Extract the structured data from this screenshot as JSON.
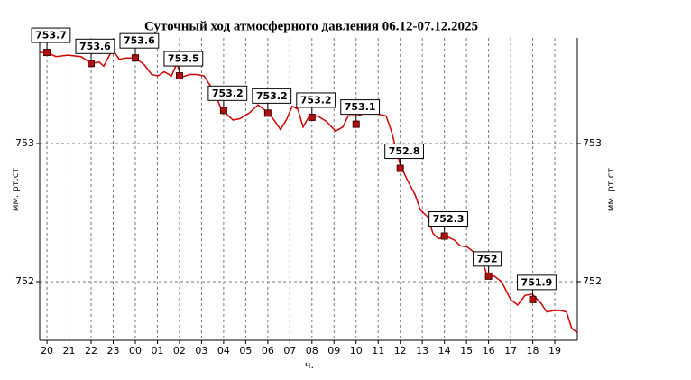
{
  "chart_data": {
    "type": "line",
    "title": "Суточный ход атмосферного давления 06.12-07.12.2025",
    "x_label": "ч.",
    "y_label": "мм. рт.ст",
    "x": [
      -0.33,
      0,
      0.41,
      0.94,
      1.55,
      2.0,
      2.37,
      2.57,
      2.86,
      3.02,
      3.27,
      3.59,
      4.0,
      4.41,
      4.74,
      5.02,
      5.31,
      5.64,
      5.88,
      6.09,
      6.45,
      6.78,
      7.11,
      7.52,
      7.84,
      8.09,
      8.42,
      8.74,
      9.15,
      9.56,
      10.05,
      10.33,
      10.58,
      10.87,
      11.11,
      11.36,
      11.6,
      11.85,
      12.25,
      12.66,
      13.07,
      13.4,
      13.64,
      14.05,
      14.42,
      14.83,
      15.36,
      15.6,
      16.01,
      16.34,
      16.67,
      16.91,
      17.24,
      17.48,
      17.73,
      18.06,
      18.46,
      18.71,
      19.04,
      19.44,
      19.77,
      19.93,
      20.26,
      20.59,
      21.0,
      21.32,
      21.65,
      21.98,
      22.39,
      22.63,
      22.96,
      23.28,
      23.53,
      23.77,
      24.02
    ],
    "series": [
      {
        "color": "#d00000",
        "values": [
          753.66,
          753.66,
          753.63,
          753.64,
          753.63,
          753.58,
          753.59,
          753.56,
          753.65,
          753.67,
          753.61,
          753.62,
          753.62,
          753.57,
          753.5,
          753.49,
          753.52,
          753.49,
          753.58,
          753.48,
          753.5,
          753.5,
          753.49,
          753.39,
          753.27,
          753.22,
          753.17,
          753.18,
          753.22,
          753.28,
          753.22,
          753.16,
          753.1,
          753.18,
          753.27,
          753.25,
          753.12,
          753.19,
          753.2,
          753.16,
          753.09,
          753.12,
          753.2,
          753.2,
          753.22,
          753.22,
          753.2,
          753.09,
          752.84,
          752.73,
          752.63,
          752.52,
          752.47,
          752.35,
          752.31,
          752.33,
          752.3,
          752.26,
          752.25,
          752.2,
          752.12,
          752.05,
          752.04,
          752.0,
          751.87,
          751.83,
          751.9,
          751.91,
          751.84,
          751.78,
          751.79,
          751.79,
          751.78,
          751.66,
          751.63
        ]
      }
    ],
    "markers": {
      "color": "#b01010",
      "x": [
        0,
        2,
        4,
        6,
        8,
        10,
        12,
        14,
        16,
        18,
        20,
        22
      ],
      "values": [
        753.66,
        753.58,
        753.62,
        753.49,
        753.24,
        753.22,
        753.19,
        753.14,
        752.82,
        752.33,
        752.04,
        751.87
      ],
      "value_labels": [
        "753.7",
        "753.6",
        "753.6",
        "753.5",
        "753.2",
        "753.2",
        "753.2",
        "753.1",
        "752.8",
        "752.3",
        "752",
        "751.9"
      ]
    },
    "xlim": [
      -0.33,
      24.02
    ],
    "ylim": [
      751.575,
      753.765
    ],
    "xticks": [
      {
        "value": 0,
        "label": "20"
      },
      {
        "value": 1,
        "label": "21"
      },
      {
        "value": 2,
        "label": "22"
      },
      {
        "value": 3,
        "label": "23"
      },
      {
        "value": 4,
        "label": "00"
      },
      {
        "value": 5,
        "label": "01"
      },
      {
        "value": 6,
        "label": "02"
      },
      {
        "value": 7,
        "label": "03"
      },
      {
        "value": 8,
        "label": "04"
      },
      {
        "value": 9,
        "label": "05"
      },
      {
        "value": 10,
        "label": "06"
      },
      {
        "value": 11,
        "label": "07"
      },
      {
        "value": 12,
        "label": "08"
      },
      {
        "value": 13,
        "label": "09"
      },
      {
        "value": 14,
        "label": "10"
      },
      {
        "value": 15,
        "label": "11"
      },
      {
        "value": 16,
        "label": "12"
      },
      {
        "value": 17,
        "label": "13"
      },
      {
        "value": 18,
        "label": "14"
      },
      {
        "value": 19,
        "label": "15"
      },
      {
        "value": 20,
        "label": "16"
      },
      {
        "value": 21,
        "label": "17"
      },
      {
        "value": 22,
        "label": "18"
      },
      {
        "value": 23,
        "label": "19"
      }
    ],
    "yticks": [
      752,
      753
    ],
    "grid": true
  }
}
